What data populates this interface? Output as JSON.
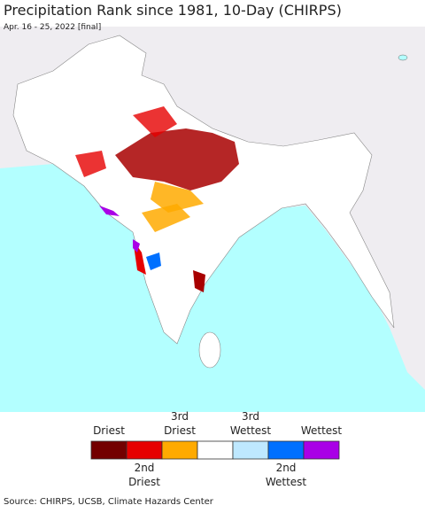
{
  "header": {
    "title": "Precipitation Rank since 1981, 10-Day (CHIRPS)",
    "subtitle": "Apr. 16 - 25, 2022 [final]"
  },
  "legend": {
    "items": [
      {
        "color": "#730000",
        "label": [
          "Driest"
        ]
      },
      {
        "color": "#e60000",
        "label": [
          "2nd",
          "Driest"
        ]
      },
      {
        "color": "#ffaa00",
        "label": [
          "3rd",
          "Driest"
        ]
      },
      {
        "color": "#ffffff",
        "label": null
      },
      {
        "color": "#bee8ff",
        "label": [
          "3rd",
          "Wettest"
        ]
      },
      {
        "color": "#0070ff",
        "label": [
          "2nd",
          "Wettest"
        ]
      },
      {
        "color": "#a900e6",
        "label": [
          "Wettest"
        ]
      }
    ]
  },
  "footer": {
    "source": "Source: CHIRPS, UCSB, Climate Hazards Center"
  }
}
